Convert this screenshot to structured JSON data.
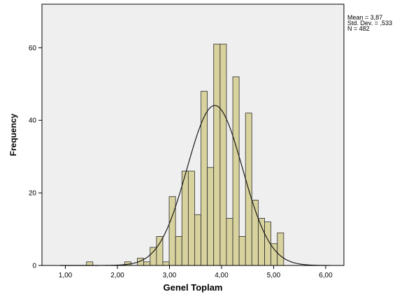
{
  "chart_data": {
    "type": "bar",
    "title": "",
    "xlabel": "Genel Toplam",
    "ylabel": "Frequency",
    "xlim": [
      0.55,
      6.35
    ],
    "ylim": [
      0,
      72
    ],
    "x_ticks": [
      1,
      2,
      3,
      4,
      5,
      6
    ],
    "x_tick_labels": [
      "1,00",
      "2,00",
      "3,00",
      "4,00",
      "5,00",
      "6,00"
    ],
    "y_ticks": [
      0,
      20,
      40,
      60
    ],
    "y_tick_labels": [
      "0",
      "20",
      "40",
      "60"
    ],
    "bin_width": 0.1222,
    "bin_start": 1.406,
    "bins": [
      {
        "x": 1.467,
        "count": 1
      },
      {
        "x": 1.589,
        "count": 0
      },
      {
        "x": 1.711,
        "count": 0
      },
      {
        "x": 1.834,
        "count": 0
      },
      {
        "x": 1.956,
        "count": 0
      },
      {
        "x": 2.078,
        "count": 0
      },
      {
        "x": 2.2,
        "count": 1
      },
      {
        "x": 2.322,
        "count": 0
      },
      {
        "x": 2.444,
        "count": 2
      },
      {
        "x": 2.567,
        "count": 1
      },
      {
        "x": 2.689,
        "count": 5
      },
      {
        "x": 2.811,
        "count": 8
      },
      {
        "x": 2.933,
        "count": 1
      },
      {
        "x": 3.055,
        "count": 19
      },
      {
        "x": 3.177,
        "count": 8
      },
      {
        "x": 3.3,
        "count": 26
      },
      {
        "x": 3.422,
        "count": 26
      },
      {
        "x": 3.544,
        "count": 14
      },
      {
        "x": 3.666,
        "count": 48
      },
      {
        "x": 3.788,
        "count": 27
      },
      {
        "x": 3.91,
        "count": 61
      },
      {
        "x": 4.033,
        "count": 61
      },
      {
        "x": 4.155,
        "count": 13
      },
      {
        "x": 4.277,
        "count": 52
      },
      {
        "x": 4.399,
        "count": 8
      },
      {
        "x": 4.521,
        "count": 42
      },
      {
        "x": 4.643,
        "count": 18
      },
      {
        "x": 4.766,
        "count": 13
      },
      {
        "x": 4.888,
        "count": 12
      },
      {
        "x": 5.01,
        "count": 6
      },
      {
        "x": 5.132,
        "count": 9
      }
    ],
    "normal_curve": {
      "mean": 3.87,
      "std": 0.533,
      "n": 482
    },
    "stats_labels": [
      "Mean = 3,87",
      "Std. Dev. = ,533",
      "N = 482"
    ],
    "grid": false,
    "colors": {
      "bar_fill": "#d8d29e",
      "bar_stroke": "#2b2b2b",
      "plot_background": "#efefef",
      "curve": "#1a1a1a"
    }
  }
}
